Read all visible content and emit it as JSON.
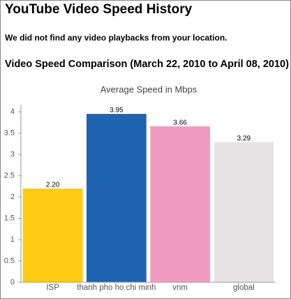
{
  "header": {
    "title": "YouTube Video Speed History",
    "message": "We did not find any video playbacks from your location.",
    "comparison_title": "Video Speed Comparison (March 22, 2010 to April 08, 2010)"
  },
  "chart_data": {
    "type": "bar",
    "title": "Average Speed in Mbps",
    "categories": [
      "ISP",
      "thanh pho ho chi minh",
      "vnm",
      "global"
    ],
    "values": [
      2.2,
      3.95,
      3.66,
      3.29
    ],
    "value_labels": [
      "2.20",
      "3.95",
      "3.66",
      "3.29"
    ],
    "colors": [
      "#ffcc11",
      "#1f64b0",
      "#f09cc0",
      "#e8e4e6"
    ],
    "ylim": [
      0,
      4
    ],
    "yticks": [
      0,
      0.5,
      1,
      1.5,
      2,
      2.5,
      3,
      3.5,
      4
    ],
    "grid": false
  }
}
